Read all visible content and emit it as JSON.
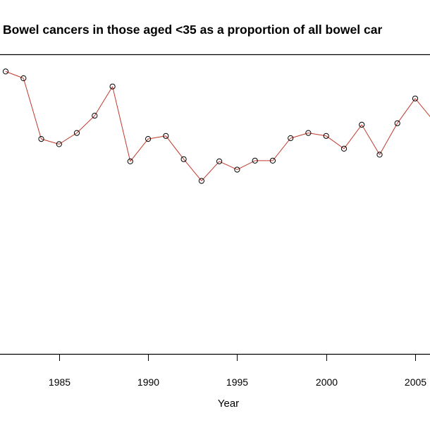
{
  "chart_data": {
    "type": "line",
    "title": "Bowel cancers in those aged <35 as a proportion of all bowel car",
    "xlabel": "Year",
    "ylabel": "",
    "x_ticks": [
      1985,
      1990,
      1995,
      2000,
      2005
    ],
    "x_tick_labels": [
      "1985",
      "1990",
      "1995",
      "2000",
      "2005"
    ],
    "xlim": [
      1981.7,
      2006.2
    ],
    "ylim": [
      0,
      4
    ],
    "y_axis_visible": false,
    "grid": false,
    "series": [
      {
        "name": "proportion",
        "line_color": "#c0392b",
        "marker_color": "#000000",
        "marker": "open-circle",
        "x": [
          1982,
          1983,
          1984,
          1985,
          1986,
          1987,
          1988,
          1989,
          1990,
          1991,
          1992,
          1993,
          1994,
          1995,
          1996,
          1997,
          1998,
          1999,
          2000,
          2001,
          2002,
          2003,
          2004,
          2005,
          2006
        ],
        "values": [
          3.77,
          3.68,
          2.87,
          2.8,
          2.95,
          3.18,
          3.57,
          2.57,
          2.87,
          2.91,
          2.6,
          2.31,
          2.57,
          2.46,
          2.58,
          2.58,
          2.88,
          2.95,
          2.91,
          2.74,
          3.06,
          2.66,
          3.08,
          3.41,
          3.12
        ]
      }
    ]
  }
}
